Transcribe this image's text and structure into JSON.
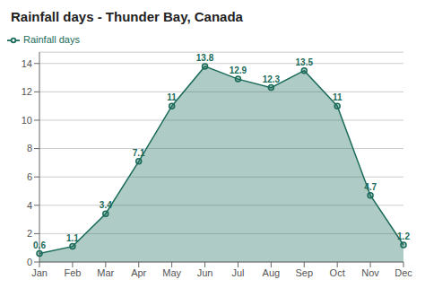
{
  "chart_data": {
    "type": "area",
    "title": "Rainfall days - Thunder Bay, Canada",
    "categories": [
      "Jan",
      "Feb",
      "Mar",
      "Apr",
      "May",
      "Jun",
      "Jul",
      "Aug",
      "Sep",
      "Oct",
      "Nov",
      "Dec"
    ],
    "series": [
      {
        "name": "Rainfall days",
        "color": "#1a6b5a",
        "values": [
          0.6,
          1.1,
          3.4,
          7.1,
          11.0,
          13.8,
          12.9,
          12.3,
          13.5,
          11.0,
          4.7,
          1.2
        ]
      }
    ],
    "ylim": [
      0,
      14.8
    ],
    "yticks": [
      0,
      2,
      4,
      6,
      8,
      10,
      12,
      14
    ],
    "grid": true,
    "legend": "upper left",
    "data_labels": true,
    "marker": "circle"
  }
}
